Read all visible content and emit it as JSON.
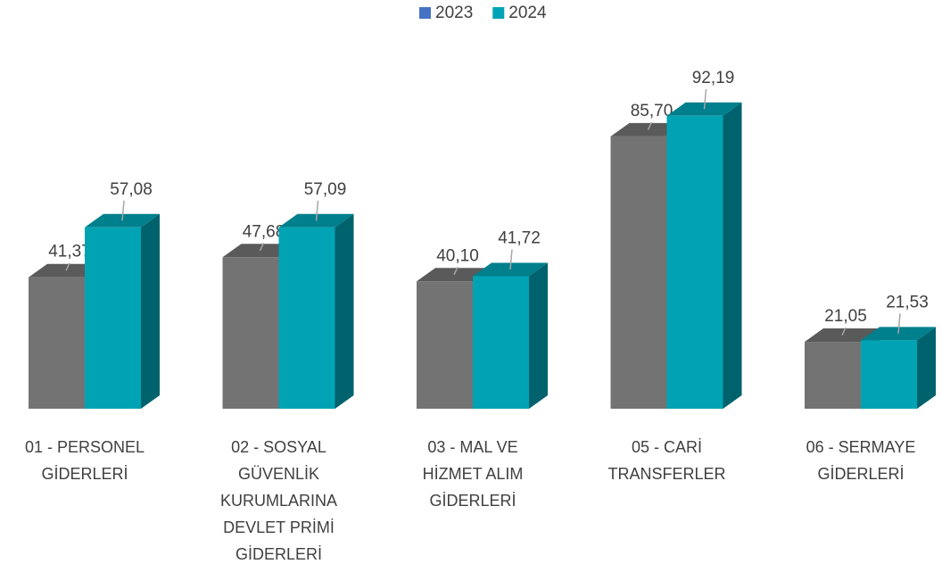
{
  "chart_data": {
    "type": "bar3d",
    "categories": [
      "01 - PERSONEL GİDERLERİ",
      "02 - SOSYAL GÜVENLİK KURUMLARINA DEVLET PRİMİ GİDERLERİ",
      "03 - MAL VE HİZMET ALIM GİDERLERİ",
      "05 - CARİ TRANSFERLER",
      "06 - SERMAYE GİDERLERİ"
    ],
    "series": [
      {
        "name": "2023",
        "color": "#737373",
        "legend_color": "#4472c4",
        "values": [
          41.37,
          47.68,
          40.1,
          85.7,
          21.05
        ],
        "value_labels": [
          "41,37",
          "47,68",
          "40,10",
          "85,70",
          "21,05"
        ]
      },
      {
        "name": "2024",
        "color": "#00a3b4",
        "legend_color": "#00a3b4",
        "values": [
          57.08,
          57.09,
          41.72,
          92.19,
          21.53
        ],
        "value_labels": [
          "57,08",
          "57,09",
          "41,72",
          "92,19",
          "21,53"
        ]
      }
    ],
    "ylim": [
      0,
      100
    ],
    "legend": "top"
  }
}
